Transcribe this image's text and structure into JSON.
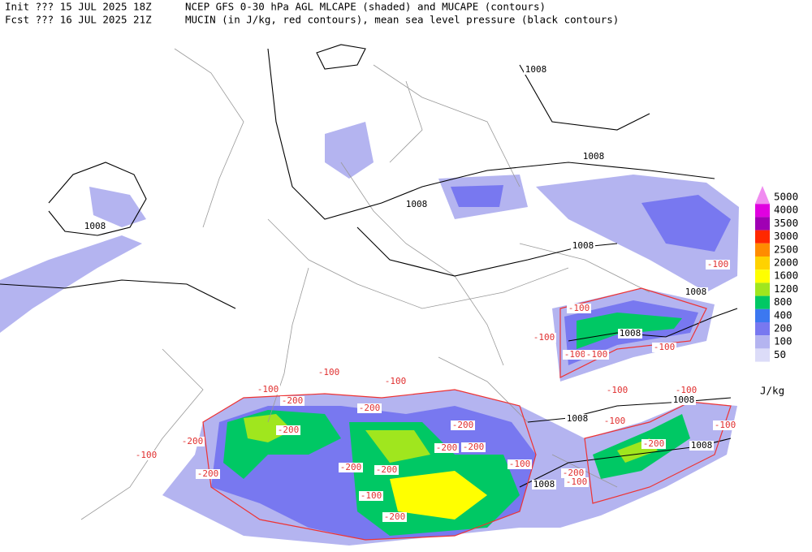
{
  "header": {
    "line1_left": "Init  ??? 15 JUL 2025 18Z",
    "line1_right": "NCEP GFS 0-30 hPa AGL MLCAPE (shaded) and MUCAPE (contours)",
    "line2_left": "Fcst ??? 16 JUL 2025 21Z",
    "line2_right": "MUCIN (in J/kg, red contours), mean sea level pressure (black contours)"
  },
  "legend": {
    "levels": [
      "5000",
      "4000",
      "3500",
      "3000",
      "2500",
      "2000",
      "1600",
      "1200",
      "800",
      "400",
      "200",
      "100",
      "50"
    ],
    "colors": [
      "#f08cf0",
      "#e000e0",
      "#a000b4",
      "#ff2800",
      "#ff8c00",
      "#ffd200",
      "#ffff00",
      "#a0e61e",
      "#00c864",
      "#3c78f0",
      "#7878f0",
      "#b4b4f0",
      "#dcdcf8"
    ],
    "unit": "J/kg"
  },
  "pressure_labels": [
    "1008",
    "1008",
    "1008",
    "1008",
    "1008",
    "1008",
    "1008",
    "1008",
    "1008",
    "1008",
    "1008"
  ],
  "cin_labels": [
    "-100",
    "-100",
    "-100",
    "-100",
    "-100",
    "-100",
    "-100",
    "-100",
    "-100",
    "-100",
    "-100",
    "-100",
    "-100",
    "-100",
    "-100",
    "-100",
    "-100",
    "-200",
    "-200",
    "-200",
    "-200",
    "-200",
    "-200",
    "-200",
    "-200",
    "-200",
    "-200",
    "-200",
    "-200",
    "-200"
  ]
}
